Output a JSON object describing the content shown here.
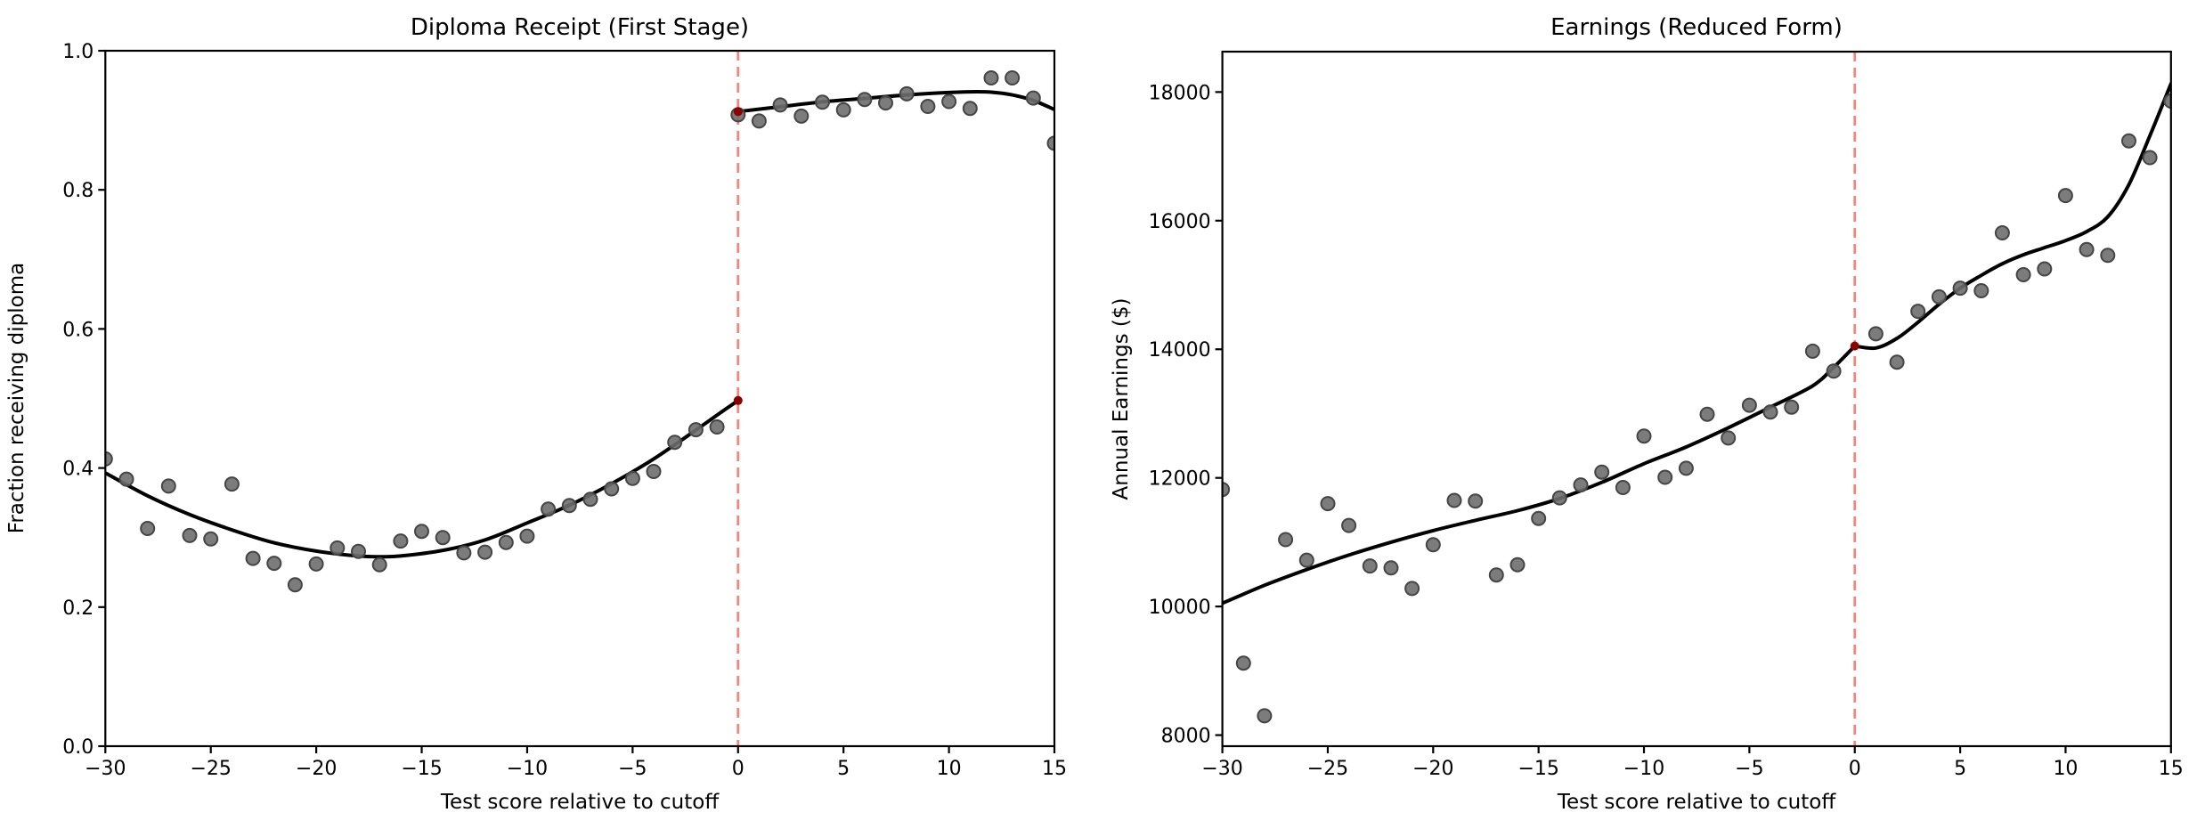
{
  "figure": {
    "background": "#ffffff"
  },
  "colors": {
    "scatter_fill": "#6e6e6e",
    "scatter_edge": "#454545",
    "fit_line": "#000000",
    "cutoff_line": "#f8837b",
    "cutoff_marker": "#8b0000",
    "axis": "#000000"
  },
  "chart_data": [
    {
      "type": "scatter",
      "title": "Diploma Receipt (First Stage)",
      "xlabel": "Test score relative to cutoff",
      "ylabel": "Fraction receiving diploma",
      "xlim": [
        -30,
        15
      ],
      "ylim": [
        0.0,
        1.0
      ],
      "grid": false,
      "xticks": [
        {
          "v": -30,
          "label": "−30"
        },
        {
          "v": -25,
          "label": "−25"
        },
        {
          "v": -20,
          "label": "−20"
        },
        {
          "v": -15,
          "label": "−15"
        },
        {
          "v": -10,
          "label": "−10"
        },
        {
          "v": -5,
          "label": "−5"
        },
        {
          "v": 0,
          "label": "0"
        },
        {
          "v": 5,
          "label": "5"
        },
        {
          "v": 10,
          "label": "10"
        },
        {
          "v": 15,
          "label": "15"
        }
      ],
      "yticks": [
        {
          "v": 0.0,
          "label": "0.0"
        },
        {
          "v": 0.2,
          "label": "0.2"
        },
        {
          "v": 0.4,
          "label": "0.4"
        },
        {
          "v": 0.6,
          "label": "0.6"
        },
        {
          "v": 0.8,
          "label": "0.8"
        },
        {
          "v": 1.0,
          "label": "1.0"
        }
      ],
      "cutoff_x": 0,
      "points": [
        [
          -30,
          0.413
        ],
        [
          -29,
          0.384
        ],
        [
          -28,
          0.313
        ],
        [
          -27,
          0.374
        ],
        [
          -26,
          0.303
        ],
        [
          -25,
          0.298
        ],
        [
          -24,
          0.377
        ],
        [
          -23,
          0.27
        ],
        [
          -22,
          0.263
        ],
        [
          -21,
          0.232
        ],
        [
          -20,
          0.262
        ],
        [
          -19,
          0.285
        ],
        [
          -18,
          0.28
        ],
        [
          -17,
          0.261
        ],
        [
          -16,
          0.295
        ],
        [
          -15,
          0.309
        ],
        [
          -14,
          0.3
        ],
        [
          -13,
          0.278
        ],
        [
          -12,
          0.279
        ],
        [
          -11,
          0.293
        ],
        [
          -10,
          0.302
        ],
        [
          -9,
          0.341
        ],
        [
          -8,
          0.346
        ],
        [
          -7,
          0.355
        ],
        [
          -6,
          0.37
        ],
        [
          -5,
          0.385
        ],
        [
          -4,
          0.395
        ],
        [
          -3,
          0.437
        ],
        [
          -2,
          0.455
        ],
        [
          -1,
          0.459
        ],
        [
          0,
          0.908
        ],
        [
          1,
          0.899
        ],
        [
          2,
          0.922
        ],
        [
          3,
          0.906
        ],
        [
          4,
          0.926
        ],
        [
          5,
          0.915
        ],
        [
          6,
          0.93
        ],
        [
          7,
          0.925
        ],
        [
          8,
          0.938
        ],
        [
          9,
          0.92
        ],
        [
          10,
          0.927
        ],
        [
          11,
          0.917
        ],
        [
          12,
          0.961
        ],
        [
          13,
          0.961
        ],
        [
          14,
          0.932
        ],
        [
          15,
          0.867
        ]
      ],
      "fit_left": [
        [
          -30,
          0.393
        ],
        [
          -28,
          0.36
        ],
        [
          -26,
          0.333
        ],
        [
          -24,
          0.311
        ],
        [
          -22,
          0.2925
        ],
        [
          -20,
          0.2805
        ],
        [
          -18,
          0.2735
        ],
        [
          -17,
          0.2725
        ],
        [
          -16,
          0.2735
        ],
        [
          -14,
          0.2815
        ],
        [
          -12,
          0.2965
        ],
        [
          -10,
          0.321
        ],
        [
          -8,
          0.3465
        ],
        [
          -6,
          0.3775
        ],
        [
          -4,
          0.413
        ],
        [
          -2,
          0.4545
        ],
        [
          -1,
          0.476
        ],
        [
          0,
          0.497
        ]
      ],
      "fit_right": [
        [
          0,
          0.9125
        ],
        [
          2,
          0.9195
        ],
        [
          4,
          0.9265
        ],
        [
          6,
          0.9315
        ],
        [
          8,
          0.9365
        ],
        [
          10,
          0.94
        ],
        [
          11,
          0.941
        ],
        [
          12,
          0.9405
        ],
        [
          13,
          0.9365
        ],
        [
          14,
          0.9285
        ],
        [
          15,
          0.9155
        ]
      ],
      "cutoff_markers": [
        [
          0,
          0.497
        ],
        [
          0,
          0.9125
        ]
      ]
    },
    {
      "type": "scatter",
      "title": "Earnings (Reduced Form)",
      "xlabel": "Test score relative to cutoff",
      "ylabel": "Annual Earnings ($)",
      "xlim": [
        -30,
        15
      ],
      "ylim": [
        7828,
        18628
      ],
      "grid": false,
      "xticks": [
        {
          "v": -30,
          "label": "−30"
        },
        {
          "v": -25,
          "label": "−25"
        },
        {
          "v": -20,
          "label": "−20"
        },
        {
          "v": -15,
          "label": "−15"
        },
        {
          "v": -10,
          "label": "−10"
        },
        {
          "v": -5,
          "label": "−5"
        },
        {
          "v": 0,
          "label": "0"
        },
        {
          "v": 5,
          "label": "5"
        },
        {
          "v": 10,
          "label": "10"
        },
        {
          "v": 15,
          "label": "15"
        }
      ],
      "yticks": [
        {
          "v": 8000,
          "label": "8000"
        },
        {
          "v": 10000,
          "label": "10000"
        },
        {
          "v": 12000,
          "label": "12000"
        },
        {
          "v": 14000,
          "label": "14000"
        },
        {
          "v": 16000,
          "label": "16000"
        },
        {
          "v": 18000,
          "label": "18000"
        }
      ],
      "cutoff_x": 0,
      "points": [
        [
          -30,
          11820
        ],
        [
          -29,
          9120
        ],
        [
          -28,
          8300
        ],
        [
          -27,
          11040
        ],
        [
          -26,
          10720
        ],
        [
          -25,
          11600
        ],
        [
          -24,
          11260
        ],
        [
          -23,
          10630
        ],
        [
          -22,
          10600
        ],
        [
          -21,
          10280
        ],
        [
          -20,
          10960
        ],
        [
          -19,
          11650
        ],
        [
          -18,
          11640
        ],
        [
          -17,
          10490
        ],
        [
          -16,
          10650
        ],
        [
          -15,
          11370
        ],
        [
          -14,
          11690
        ],
        [
          -13,
          11890
        ],
        [
          -12,
          12090
        ],
        [
          -11,
          11850
        ],
        [
          -10,
          12650
        ],
        [
          -9,
          12010
        ],
        [
          -8,
          12150
        ],
        [
          -7,
          12990
        ],
        [
          -6,
          12620
        ],
        [
          -5,
          13130
        ],
        [
          -4,
          13025
        ],
        [
          -3,
          13100
        ],
        [
          -2,
          13970
        ],
        [
          -1,
          13660
        ],
        [
          1,
          14240
        ],
        [
          2,
          13800
        ],
        [
          3,
          14590
        ],
        [
          4,
          14815
        ],
        [
          5,
          14950
        ],
        [
          6,
          14910
        ],
        [
          7,
          15810
        ],
        [
          8,
          15160
        ],
        [
          9,
          15250
        ],
        [
          10,
          16390
        ],
        [
          11,
          15550
        ],
        [
          12,
          15460
        ],
        [
          13,
          17240
        ],
        [
          14,
          16980
        ],
        [
          15,
          17860
        ]
      ],
      "fit_left": [
        [
          -30,
          10050
        ],
        [
          -28,
          10330
        ],
        [
          -26,
          10575
        ],
        [
          -24,
          10800
        ],
        [
          -22,
          11000
        ],
        [
          -20,
          11180
        ],
        [
          -18,
          11340
        ],
        [
          -16,
          11490
        ],
        [
          -14,
          11680
        ],
        [
          -12,
          11930
        ],
        [
          -10,
          12220
        ],
        [
          -8,
          12480
        ],
        [
          -6,
          12780
        ],
        [
          -4,
          13100
        ],
        [
          -2,
          13430
        ],
        [
          -1,
          13720
        ],
        [
          0,
          14050
        ]
      ],
      "fit_right": [
        [
          0,
          14050
        ],
        [
          1,
          14020
        ],
        [
          2,
          14170
        ],
        [
          3,
          14420
        ],
        [
          4,
          14700
        ],
        [
          5,
          14950
        ],
        [
          6,
          15150
        ],
        [
          7,
          15330
        ],
        [
          8,
          15470
        ],
        [
          9,
          15580
        ],
        [
          10,
          15690
        ],
        [
          11,
          15830
        ],
        [
          12,
          16060
        ],
        [
          13,
          16560
        ],
        [
          14,
          17320
        ],
        [
          15,
          18130
        ]
      ],
      "cutoff_markers": [
        [
          0,
          14050
        ]
      ]
    }
  ]
}
